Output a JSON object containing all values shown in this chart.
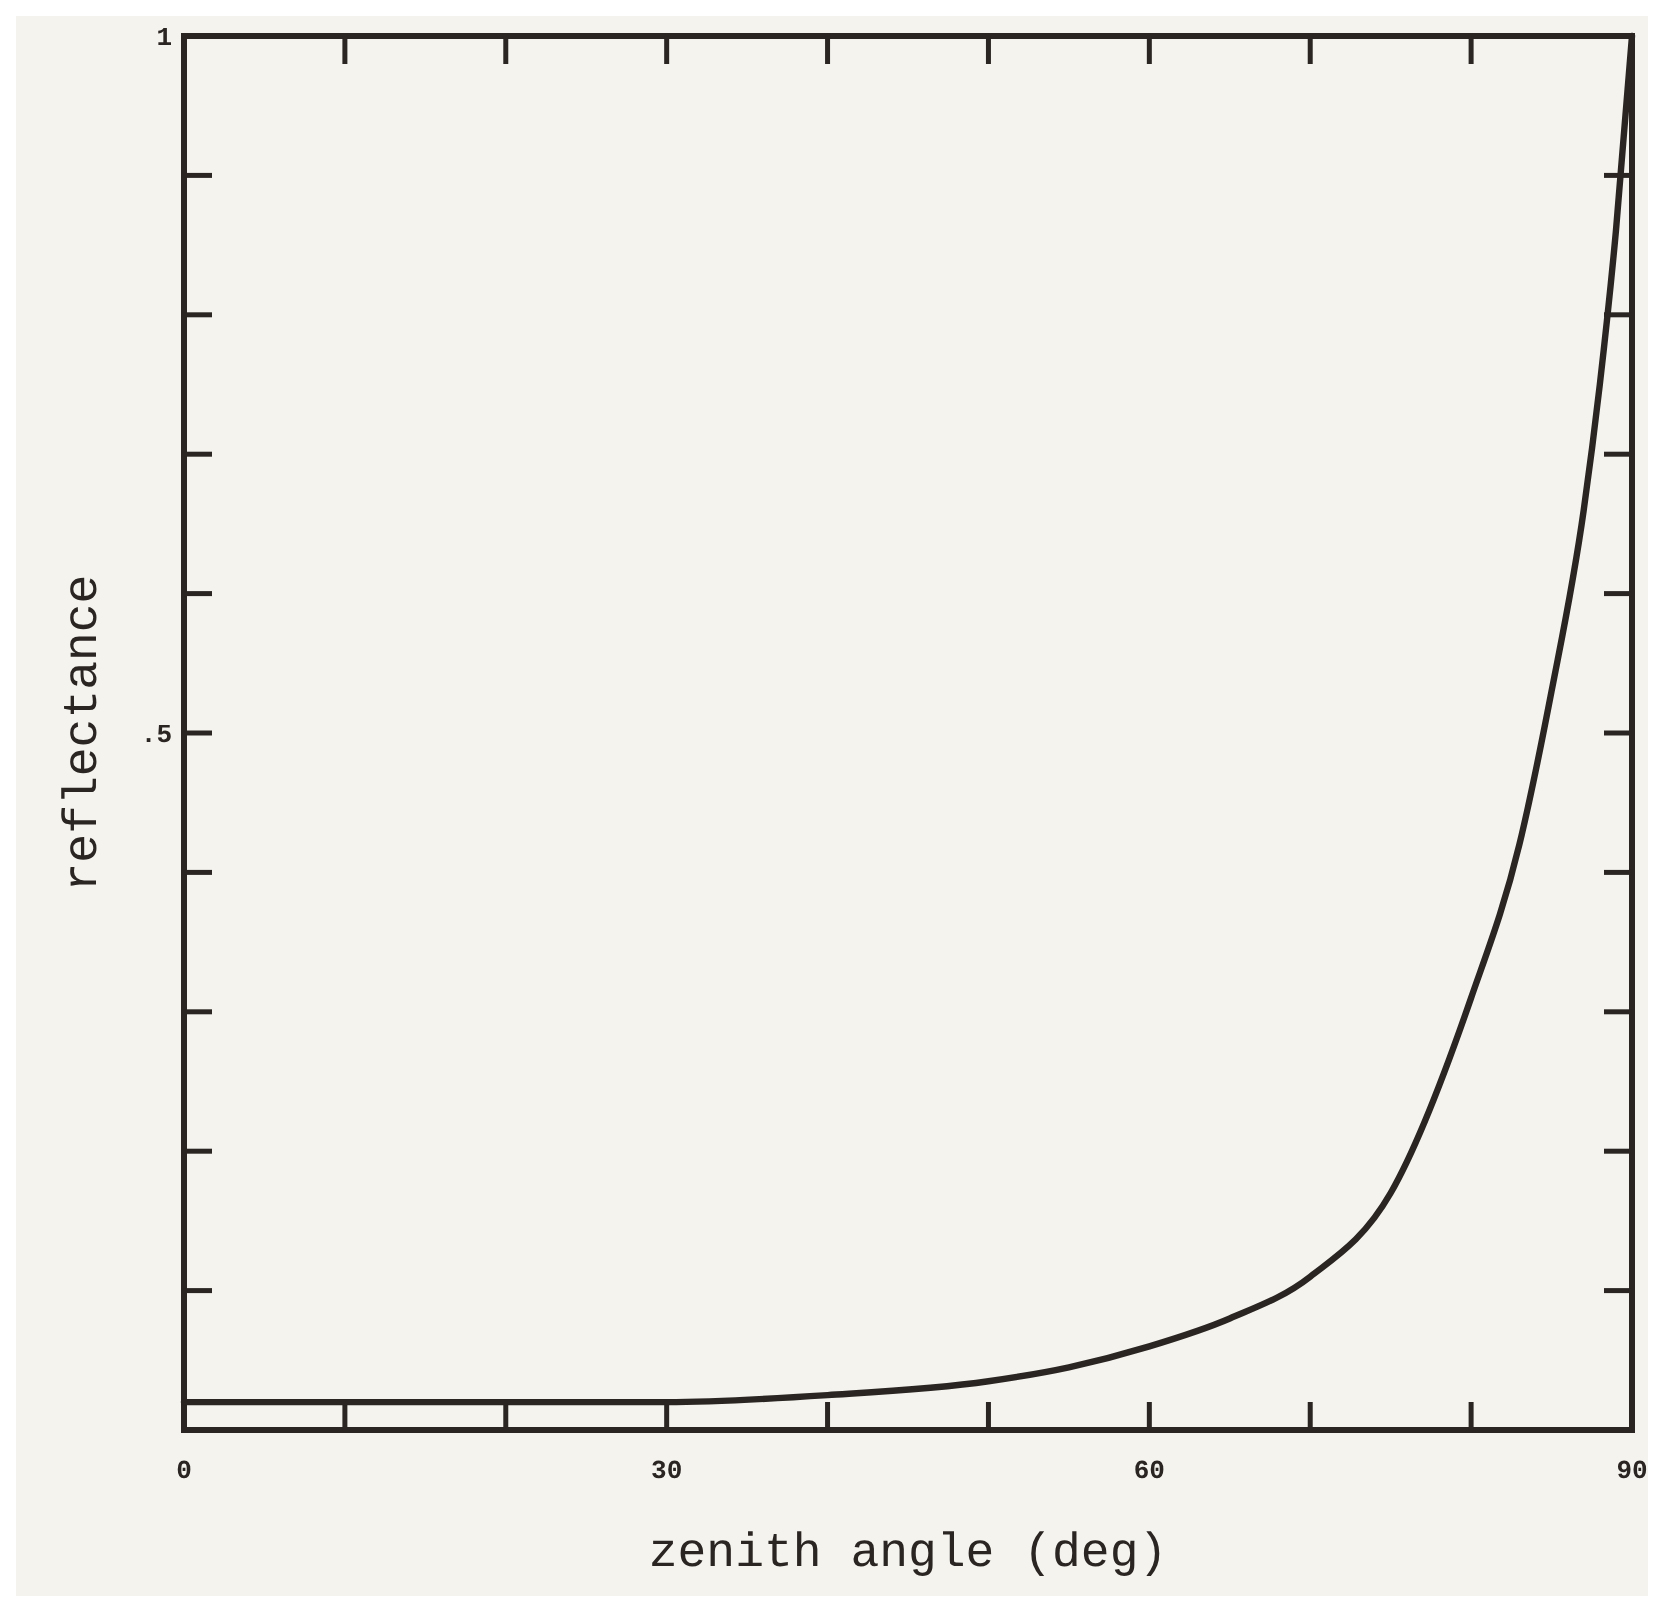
{
  "chart_data": {
    "type": "line",
    "xlabel": "zenith angle (deg)",
    "ylabel": "reflectance",
    "x": [
      0,
      10,
      20,
      30,
      40,
      50,
      55,
      60,
      65,
      70,
      75,
      80,
      83,
      85,
      87,
      88,
      89,
      90
    ],
    "series": [
      {
        "color": "#2a2522",
        "values": [
          0.02,
          0.02,
          0.02,
          0.02,
          0.025,
          0.035,
          0.045,
          0.06,
          0.08,
          0.11,
          0.17,
          0.31,
          0.42,
          0.53,
          0.66,
          0.75,
          0.86,
          1.0
        ]
      }
    ],
    "xlim": [
      0,
      90
    ],
    "ylim": [
      0,
      1
    ],
    "xticks": [
      0,
      {
        "value": 10,
        "label": null
      },
      {
        "value": 20,
        "label": null
      },
      30,
      {
        "value": 40,
        "label": null
      },
      {
        "value": 50,
        "label": null
      },
      60,
      {
        "value": 70,
        "label": null
      },
      {
        "value": 80,
        "label": null
      },
      90
    ],
    "yticks": [
      {
        "value": 0.1,
        "label": null
      },
      {
        "value": 0.2,
        "label": null
      },
      {
        "value": 0.3,
        "label": null
      },
      {
        "value": 0.4,
        "label": null
      },
      {
        "value": 0.5,
        "label": ".5"
      },
      {
        "value": 0.6,
        "label": null
      },
      {
        "value": 0.7,
        "label": null
      },
      {
        "value": 0.8,
        "label": null
      },
      {
        "value": 0.9,
        "label": null
      },
      1
    ],
    "grid": false,
    "marker": "none",
    "line_style": "solid"
  }
}
